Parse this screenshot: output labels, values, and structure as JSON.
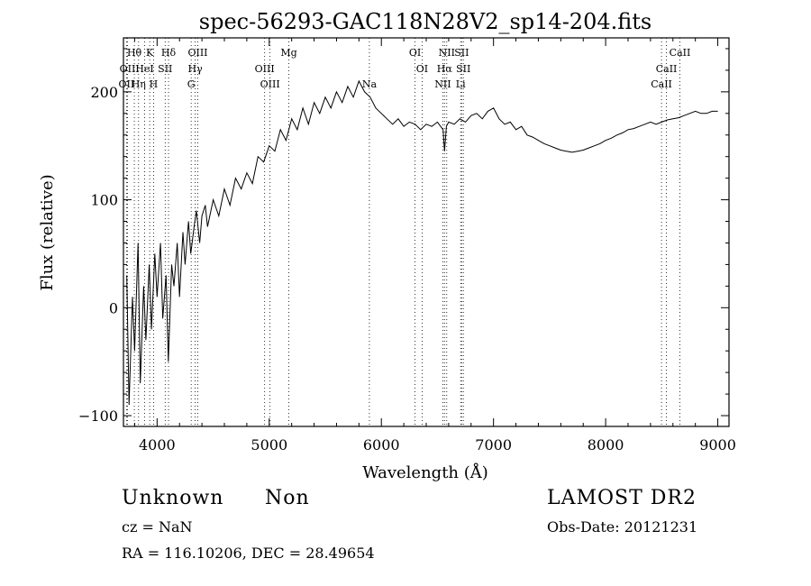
{
  "chart_data": {
    "type": "line",
    "title": "spec-56293-GAC118N28V2_sp14-204.fits",
    "xlabel": "Wavelength (Å)",
    "ylabel": "Flux (relative)",
    "xlim": [
      3700,
      9100
    ],
    "ylim": [
      -110,
      250
    ],
    "xticks": [
      4000,
      5000,
      6000,
      7000,
      8000,
      9000
    ],
    "xtick_labels": [
      "4000",
      "5000",
      "6000",
      "7000",
      "8000",
      "9000"
    ],
    "yticks": [
      -100,
      0,
      100,
      200
    ],
    "ytick_labels": [
      "−100",
      "0",
      "100",
      "200"
    ],
    "grid": false,
    "series": [
      {
        "points": [
          [
            3730,
            30
          ],
          [
            3750,
            -90
          ],
          [
            3780,
            10
          ],
          [
            3800,
            -40
          ],
          [
            3830,
            60
          ],
          [
            3850,
            -70
          ],
          [
            3880,
            20
          ],
          [
            3900,
            -30
          ],
          [
            3930,
            40
          ],
          [
            3950,
            -20
          ],
          [
            3980,
            50
          ],
          [
            4000,
            10
          ],
          [
            4030,
            60
          ],
          [
            4050,
            -10
          ],
          [
            4080,
            30
          ],
          [
            4100,
            -50
          ],
          [
            4130,
            40
          ],
          [
            4150,
            20
          ],
          [
            4180,
            60
          ],
          [
            4200,
            10
          ],
          [
            4230,
            70
          ],
          [
            4250,
            40
          ],
          [
            4280,
            80
          ],
          [
            4300,
            50
          ],
          [
            4330,
            75
          ],
          [
            4350,
            90
          ],
          [
            4380,
            60
          ],
          [
            4400,
            85
          ],
          [
            4430,
            95
          ],
          [
            4450,
            75
          ],
          [
            4500,
            100
          ],
          [
            4550,
            85
          ],
          [
            4600,
            110
          ],
          [
            4650,
            95
          ],
          [
            4700,
            120
          ],
          [
            4750,
            110
          ],
          [
            4800,
            125
          ],
          [
            4850,
            115
          ],
          [
            4900,
            140
          ],
          [
            4950,
            135
          ],
          [
            5000,
            150
          ],
          [
            5050,
            145
          ],
          [
            5100,
            165
          ],
          [
            5150,
            155
          ],
          [
            5200,
            175
          ],
          [
            5250,
            165
          ],
          [
            5300,
            185
          ],
          [
            5350,
            170
          ],
          [
            5400,
            190
          ],
          [
            5450,
            180
          ],
          [
            5500,
            195
          ],
          [
            5550,
            185
          ],
          [
            5600,
            200
          ],
          [
            5650,
            190
          ],
          [
            5700,
            205
          ],
          [
            5750,
            195
          ],
          [
            5800,
            210
          ],
          [
            5850,
            200
          ],
          [
            5900,
            195
          ],
          [
            5950,
            185
          ],
          [
            6000,
            180
          ],
          [
            6050,
            175
          ],
          [
            6100,
            170
          ],
          [
            6150,
            175
          ],
          [
            6200,
            168
          ],
          [
            6250,
            172
          ],
          [
            6300,
            170
          ],
          [
            6350,
            165
          ],
          [
            6400,
            170
          ],
          [
            6450,
            168
          ],
          [
            6500,
            172
          ],
          [
            6550,
            165
          ],
          [
            6563,
            145
          ],
          [
            6580,
            168
          ],
          [
            6600,
            172
          ],
          [
            6650,
            170
          ],
          [
            6700,
            175
          ],
          [
            6750,
            172
          ],
          [
            6800,
            178
          ],
          [
            6850,
            180
          ],
          [
            6900,
            175
          ],
          [
            6950,
            182
          ],
          [
            7000,
            185
          ],
          [
            7050,
            175
          ],
          [
            7100,
            170
          ],
          [
            7150,
            172
          ],
          [
            7200,
            165
          ],
          [
            7250,
            168
          ],
          [
            7300,
            160
          ],
          [
            7350,
            158
          ],
          [
            7400,
            155
          ],
          [
            7450,
            152
          ],
          [
            7500,
            150
          ],
          [
            7550,
            148
          ],
          [
            7600,
            146
          ],
          [
            7650,
            145
          ],
          [
            7700,
            144
          ],
          [
            7750,
            145
          ],
          [
            7800,
            146
          ],
          [
            7850,
            148
          ],
          [
            7900,
            150
          ],
          [
            7950,
            152
          ],
          [
            8000,
            155
          ],
          [
            8050,
            157
          ],
          [
            8100,
            160
          ],
          [
            8150,
            162
          ],
          [
            8200,
            165
          ],
          [
            8250,
            166
          ],
          [
            8300,
            168
          ],
          [
            8350,
            170
          ],
          [
            8400,
            172
          ],
          [
            8450,
            170
          ],
          [
            8500,
            172
          ],
          [
            8550,
            174
          ],
          [
            8600,
            175
          ],
          [
            8650,
            176
          ],
          [
            8700,
            178
          ],
          [
            8750,
            180
          ],
          [
            8800,
            182
          ],
          [
            8850,
            180
          ],
          [
            8900,
            180
          ],
          [
            8950,
            182
          ],
          [
            9000,
            182
          ]
        ]
      }
    ],
    "lines": [
      {
        "x": 3727,
        "label": "OII",
        "row": 2
      },
      {
        "x": 3736,
        "label": "OII",
        "row": 1
      },
      {
        "x": 3797,
        "label": "Hθ",
        "row": 0
      },
      {
        "x": 3835,
        "label": "Hη",
        "row": 2
      },
      {
        "x": 3889,
        "label": "HeI",
        "row": 1
      },
      {
        "x": 3934,
        "label": "K",
        "row": 0
      },
      {
        "x": 3969,
        "label": "H",
        "row": 2
      },
      {
        "x": 4072,
        "label": "SII",
        "row": 1
      },
      {
        "x": 4102,
        "label": "Hδ",
        "row": 0
      },
      {
        "x": 4340,
        "label": "Hγ",
        "row": 1
      },
      {
        "x": 4304,
        "label": "G",
        "row": 2
      },
      {
        "x": 4363,
        "label": "OIII",
        "row": 0
      },
      {
        "x": 4959,
        "label": "OIII",
        "row": 1
      },
      {
        "x": 5007,
        "label": "OIII",
        "row": 2
      },
      {
        "x": 5175,
        "label": "Mg",
        "row": 0
      },
      {
        "x": 5893,
        "label": "Na",
        "row": 2
      },
      {
        "x": 6300,
        "label": "OI",
        "row": 0
      },
      {
        "x": 6363,
        "label": "OI",
        "row": 1
      },
      {
        "x": 6548,
        "label": "NII",
        "row": 2
      },
      {
        "x": 6563,
        "label": "Hα",
        "row": 1
      },
      {
        "x": 6583,
        "label": "NII",
        "row": 0
      },
      {
        "x": 6707,
        "label": "Li",
        "row": 2
      },
      {
        "x": 6716,
        "label": "SII",
        "row": 0
      },
      {
        "x": 6731,
        "label": "SII",
        "row": 1
      },
      {
        "x": 8498,
        "label": "CaII",
        "row": 2
      },
      {
        "x": 8542,
        "label": "CaII",
        "row": 1
      },
      {
        "x": 8662,
        "label": "CaII",
        "row": 0
      }
    ]
  },
  "info": {
    "class_text": "Unknown",
    "subclass_text": "Non",
    "survey_text": "LAMOST DR2",
    "cz_text": "cz = NaN",
    "obsdate_text": "Obs-Date: 20121231",
    "radec_text": "RA = 116.10206, DEC =  28.49654"
  }
}
